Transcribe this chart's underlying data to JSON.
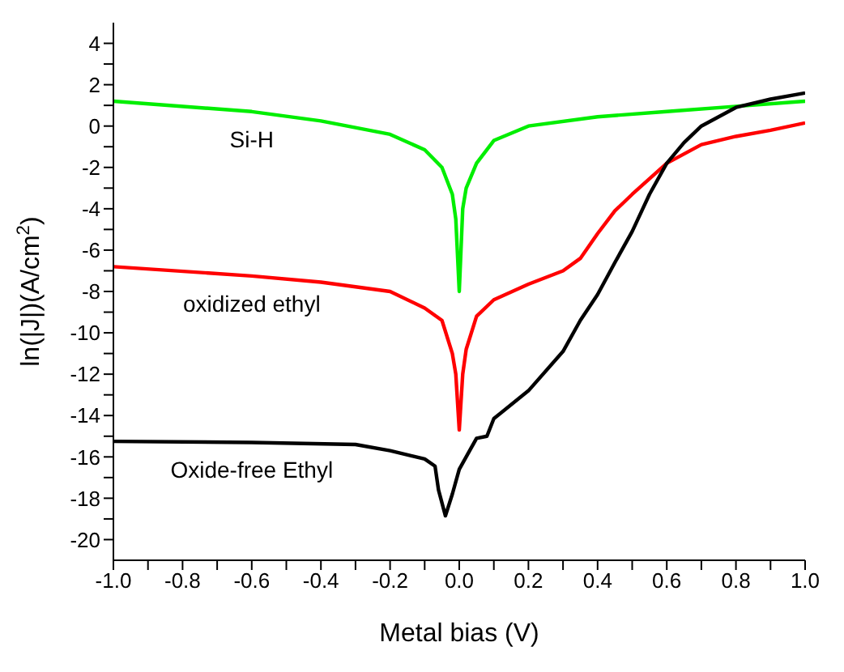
{
  "chart_data": {
    "type": "line",
    "xlabel": "Metal bias (V)",
    "ylabel": "ln(|J|)(A/cm$^{2}$)",
    "xlim": [
      -1,
      1
    ],
    "ylim": [
      -21,
      5
    ],
    "xticks": [
      {
        "value": -1,
        "label": "-1.0"
      },
      {
        "value": -0.9,
        "label": null
      },
      {
        "value": -0.8,
        "label": "-0.8"
      },
      {
        "value": -0.7,
        "label": null
      },
      {
        "value": -0.6,
        "label": "-0.6"
      },
      {
        "value": -0.5,
        "label": null
      },
      {
        "value": -0.4,
        "label": "-0.4"
      },
      {
        "value": -0.3,
        "label": null
      },
      {
        "value": -0.2,
        "label": "-0.2"
      },
      {
        "value": -0.1,
        "label": null
      },
      {
        "value": 0,
        "label": "0.0"
      },
      {
        "value": 0.1,
        "label": null
      },
      {
        "value": 0.2,
        "label": "0.2"
      },
      {
        "value": 0.3,
        "label": null
      },
      {
        "value": 0.4,
        "label": "0.4"
      },
      {
        "value": 0.5,
        "label": null
      },
      {
        "value": 0.6,
        "label": "0.6"
      },
      {
        "value": 0.7,
        "label": null
      },
      {
        "value": 0.8,
        "label": "0.8"
      },
      {
        "value": 0.9,
        "label": null
      },
      {
        "value": 1,
        "label": "1.0"
      }
    ],
    "yticks": [
      -20,
      {
        "value": -19,
        "label": null
      },
      -18,
      {
        "value": -17,
        "label": null
      },
      -16,
      {
        "value": -15,
        "label": null
      },
      -14,
      {
        "value": -13,
        "label": null
      },
      -12,
      {
        "value": -11,
        "label": null
      },
      -10,
      {
        "value": -9,
        "label": null
      },
      -8,
      {
        "value": -7,
        "label": null
      },
      -6,
      {
        "value": -5,
        "label": null
      },
      -4,
      {
        "value": -3,
        "label": null
      },
      -2,
      {
        "value": -1,
        "label": null
      },
      0,
      {
        "value": 1,
        "label": null
      },
      2,
      {
        "value": 3,
        "label": null
      },
      4
    ],
    "grid": false,
    "legend": false,
    "marker": "none",
    "line_style": "solid",
    "series": [
      {
        "name": "Si-H",
        "color": "#00ee00",
        "x": [
          -1,
          -0.6,
          -0.4,
          -0.2,
          -0.1,
          -0.05,
          -0.02,
          -0.01,
          0,
          0.01,
          0.02,
          0.05,
          0.1,
          0.2,
          0.4,
          0.6,
          0.8,
          1
        ],
        "values": [
          1.2,
          0.7,
          0.25,
          -0.4,
          -1.15,
          -2,
          -3.3,
          -4.5,
          -8,
          -4,
          -3,
          -1.8,
          -0.7,
          0,
          0.45,
          0.7,
          0.95,
          1.2
        ]
      },
      {
        "name": "oxidized ethyl",
        "color": "#ff0000",
        "x": [
          -1,
          -0.6,
          -0.4,
          -0.2,
          -0.1,
          -0.05,
          -0.02,
          -0.01,
          0,
          0.01,
          0.02,
          0.05,
          0.1,
          0.2,
          0.3,
          0.35,
          0.4,
          0.45,
          0.5,
          0.6,
          0.7,
          0.8,
          0.9,
          1
        ],
        "values": [
          -6.8,
          -7.25,
          -7.55,
          -8,
          -8.8,
          -9.4,
          -11,
          -12,
          -14.7,
          -12,
          -10.8,
          -9.2,
          -8.4,
          -7.65,
          -7,
          -6.4,
          -5.2,
          -4.1,
          -3.3,
          -1.8,
          -0.9,
          -0.5,
          -0.2,
          0.15
        ]
      },
      {
        "name": "Oxide-free Ethyl",
        "color": "#000000",
        "x": [
          -1,
          -0.6,
          -0.3,
          -0.2,
          -0.1,
          -0.07,
          -0.06,
          -0.04,
          -0.02,
          0,
          0.03,
          0.05,
          0.08,
          0.1,
          0.2,
          0.3,
          0.35,
          0.4,
          0.45,
          0.5,
          0.55,
          0.6,
          0.65,
          0.7,
          0.8,
          0.9,
          1
        ],
        "values": [
          -15.25,
          -15.3,
          -15.4,
          -15.7,
          -16.1,
          -16.45,
          -17.6,
          -18.85,
          -17.8,
          -16.6,
          -15.7,
          -15.1,
          -15,
          -14.15,
          -12.8,
          -10.9,
          -9.4,
          -8.15,
          -6.6,
          -5.1,
          -3.3,
          -1.8,
          -0.8,
          0,
          0.9,
          1.3,
          1.6
        ]
      }
    ]
  }
}
